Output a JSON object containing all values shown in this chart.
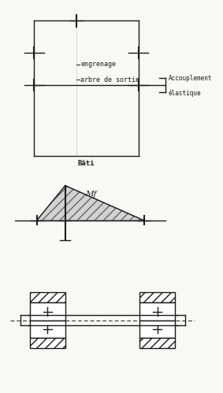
{
  "bg_color": "#f8f8f4",
  "line_color": "#1a1a1a",
  "label_engrenage": "engrenage",
  "label_arbre": "arbre de sortie",
  "label_bati": "Bâti",
  "label_accouplement_1": "Accouplement",
  "label_accouplement_2": "élastique",
  "label_mf": "Mf",
  "font_size": 6.0
}
